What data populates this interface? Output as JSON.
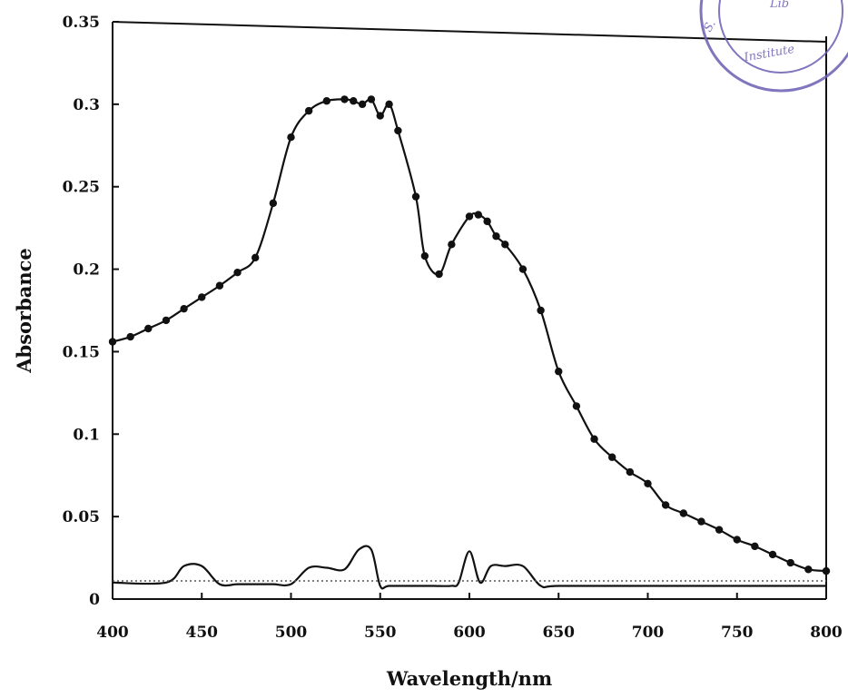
{
  "chart_data": {
    "type": "line",
    "title": "",
    "xlabel": "Wavelength/nm",
    "ylabel": "Absorbance",
    "xlim": [
      400,
      800
    ],
    "ylim": [
      0,
      0.35
    ],
    "x_ticks": [
      400,
      450,
      500,
      550,
      600,
      650,
      700,
      750,
      800
    ],
    "x_tick_labels": [
      "400",
      "450",
      "500",
      "550",
      "600",
      "650",
      "700",
      "750",
      "800"
    ],
    "y_ticks": [
      0,
      0.05,
      0.1,
      0.15,
      0.2,
      0.25,
      0.3,
      0.35
    ],
    "y_tick_labels": [
      "0",
      "0.05",
      "0.1",
      "0.15",
      "0.2",
      "0.25",
      "0.3",
      "0.35"
    ],
    "grid": false,
    "series": [
      {
        "marker": "filled-circle",
        "color": "#111111",
        "x": [
          400,
          410,
          420,
          430,
          440,
          450,
          460,
          470,
          480,
          490,
          500,
          510,
          520,
          530,
          535,
          540,
          545,
          550,
          555,
          560,
          570,
          575,
          583,
          590,
          600,
          605,
          610,
          615,
          620,
          630,
          640,
          650,
          660,
          670,
          680,
          690,
          700,
          710,
          720,
          730,
          740,
          750,
          760,
          770,
          780,
          790,
          800
        ],
        "y": [
          0.156,
          0.159,
          0.164,
          0.169,
          0.176,
          0.183,
          0.19,
          0.198,
          0.207,
          0.24,
          0.28,
          0.296,
          0.302,
          0.303,
          0.302,
          0.3,
          0.303,
          0.293,
          0.3,
          0.284,
          0.244,
          0.208,
          0.197,
          0.215,
          0.232,
          0.233,
          0.229,
          0.22,
          0.215,
          0.2,
          0.175,
          0.138,
          0.117,
          0.097,
          0.086,
          0.077,
          0.07,
          0.057,
          0.052,
          0.047,
          0.042,
          0.036,
          0.032,
          0.027,
          0.022,
          0.018,
          0.017
        ]
      },
      {
        "marker": "none",
        "color": "#111111",
        "x": [
          400,
          430,
          440,
          450,
          460,
          470,
          480,
          490,
          500,
          510,
          520,
          530,
          538,
          545,
          550,
          555,
          570,
          580,
          590,
          594,
          600,
          606,
          612,
          620,
          630,
          640,
          650,
          700,
          750,
          800
        ],
        "y": [
          0.01,
          0.01,
          0.02,
          0.02,
          0.009,
          0.009,
          0.009,
          0.009,
          0.009,
          0.019,
          0.019,
          0.018,
          0.03,
          0.03,
          0.008,
          0.008,
          0.008,
          0.008,
          0.008,
          0.01,
          0.029,
          0.01,
          0.02,
          0.02,
          0.02,
          0.008,
          0.008,
          0.008,
          0.008,
          0.008
        ]
      },
      {
        "marker": "none",
        "style": "dotted",
        "color": "#555555",
        "x": [
          400,
          800
        ],
        "y": [
          0.011,
          0.011
        ]
      }
    ]
  },
  "stamp": {
    "text_top": "Lib",
    "text_bottom": "Institute",
    "text_left": "S.",
    "color": "#6a5fb3"
  }
}
